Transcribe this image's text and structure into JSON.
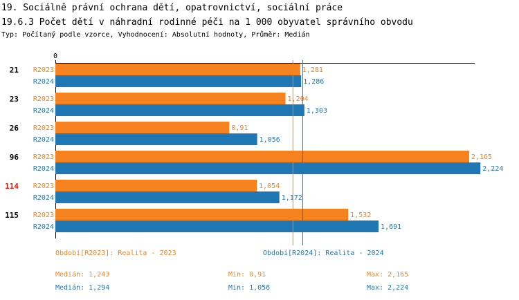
{
  "header": {
    "line1": "19. Sociálně právní ochrana dětí, opatrovnictví, sociální práce",
    "line2": "19.6.3 Počet dětí v náhradní rodinné péči na 1 000 obyvatel správního obvodu",
    "line3": "Typ: Počítaný podle vzorce, Vyhodnocení: Absolutní hodnoty, Průměr: Medián"
  },
  "colors": {
    "series_2023": "#f6821f",
    "series_2024": "#1f77b4",
    "highlight": "#e8140a",
    "text": "#000000",
    "axis": "#000000"
  },
  "chart_data": {
    "type": "bar",
    "orientation": "horizontal",
    "axis_zero_label": "0",
    "xlim": [
      0,
      2.3
    ],
    "categories": [
      "21",
      "23",
      "26",
      "96",
      "114",
      "115"
    ],
    "highlighted_category": "114",
    "series": [
      {
        "name": "R2023",
        "values": [
          1.281,
          1.204,
          0.91,
          2.165,
          1.054,
          1.532
        ],
        "labels": [
          "1,281",
          "1,204",
          "0,91",
          "2,165",
          "1,054",
          "1,532"
        ]
      },
      {
        "name": "R2024",
        "values": [
          1.286,
          1.303,
          1.056,
          2.224,
          1.172,
          1.691
        ],
        "labels": [
          "1,286",
          "1,303",
          "1,056",
          "2,224",
          "1,172",
          "1,691"
        ]
      }
    ],
    "median_lines": [
      1.243,
      1.294
    ]
  },
  "legend": {
    "r2023": "Období[R2023]: Realita - 2023",
    "r2024": "Období[R2024]: Realita - 2024"
  },
  "stats": {
    "r2023": {
      "median": "Medián: 1,243",
      "min": "Min: 0,91",
      "max": "Max: 2,165"
    },
    "r2024": {
      "median": "Medián: 1,294",
      "min": "Min: 1,056",
      "max": "Max: 2,224"
    }
  }
}
